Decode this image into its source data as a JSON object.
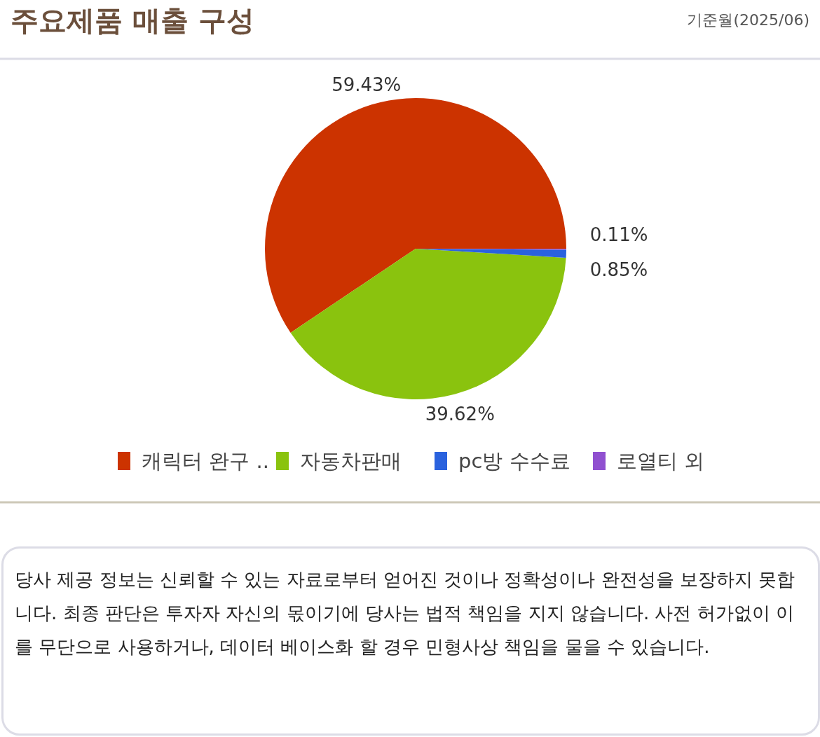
{
  "chart_data": {
    "type": "pie",
    "title": "주요제품 매출 구성",
    "subtitle": "기준월(2025/06)",
    "categories": [
      "캐릭터 완구 ..",
      "자동차판매",
      "pc방 수수료",
      "로열티 외"
    ],
    "values": [
      59.43,
      39.62,
      0.85,
      0.11
    ],
    "colors": [
      "#cc3300",
      "#8ac30e",
      "#2a62de",
      "#9050d0"
    ],
    "value_labels": [
      "59.43%",
      "39.62%",
      "0.85%",
      "0.11%"
    ],
    "legend": "bottom",
    "annotations": [
      "당사 제공 정보는 신뢰할 수 있는 자료로부터 얻어진 것이나 정확성이나 완전성을 보장하지 못합니다. 최종 판단은 투자자 자신의 몫이기에 당사는 법적 책임을 지지 않습니다. 사전 허가없이 이를 무단으로 사용하거나, 데이터 베이스화 할 경우 민형사상 책임을 물을 수 있습니다."
    ]
  }
}
